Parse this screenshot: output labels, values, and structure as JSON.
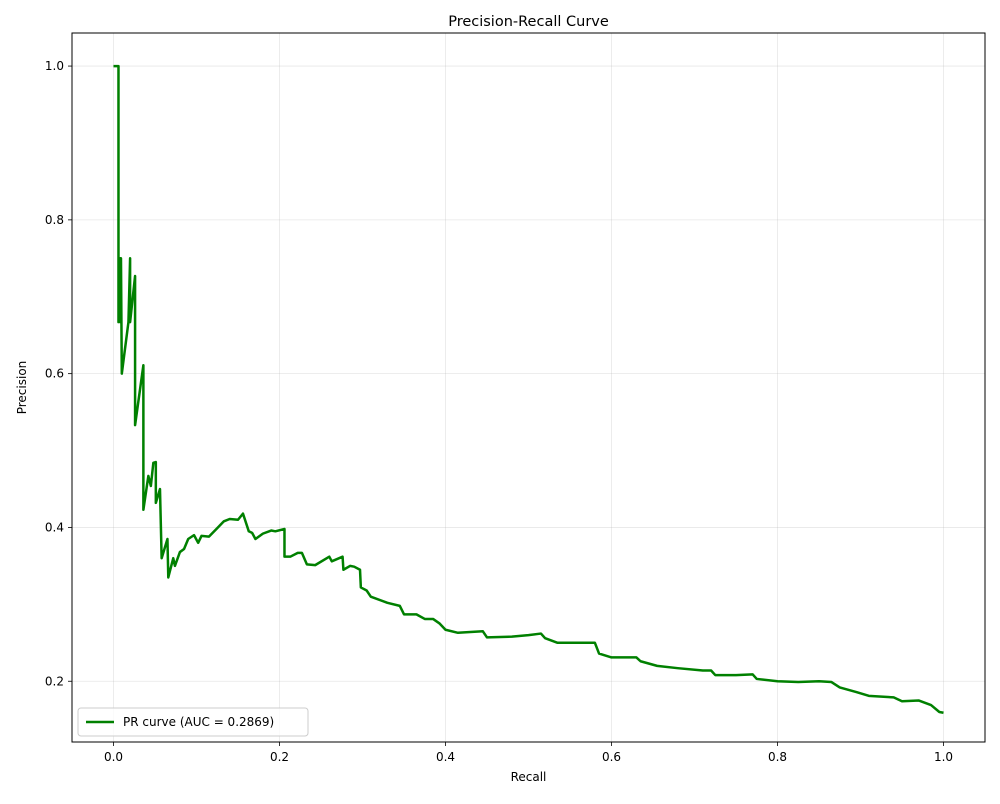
{
  "chart_data": {
    "type": "line",
    "title": "Precision-Recall Curve",
    "xlabel": "Recall",
    "ylabel": "Precision",
    "xlim": [
      -0.05,
      1.05
    ],
    "ylim": [
      0.121,
      1.043
    ],
    "xticks": [
      0.0,
      0.2,
      0.4,
      0.6,
      0.8,
      1.0
    ],
    "xtick_labels": [
      "0.0",
      "0.2",
      "0.4",
      "0.6",
      "0.8",
      "1.0"
    ],
    "yticks": [
      0.2,
      0.4,
      0.6,
      0.8,
      1.0
    ],
    "ytick_labels": [
      "0.2",
      "0.4",
      "0.6",
      "0.8",
      "1.0"
    ],
    "grid": true,
    "legend": {
      "location": "lower-left"
    },
    "series": [
      {
        "name": "PR curve (AUC = 0.2869)",
        "color": "#008000",
        "points": [
          [
            0.0,
            1.0
          ],
          [
            0.006,
            1.0
          ],
          [
            0.006,
            0.667
          ],
          [
            0.008,
            0.75
          ],
          [
            0.008,
            0.667
          ],
          [
            0.009,
            0.75
          ],
          [
            0.01,
            0.6
          ],
          [
            0.018,
            0.667
          ],
          [
            0.02,
            0.75
          ],
          [
            0.02,
            0.667
          ],
          [
            0.026,
            0.727
          ],
          [
            0.026,
            0.533
          ],
          [
            0.036,
            0.611
          ],
          [
            0.036,
            0.423
          ],
          [
            0.042,
            0.467
          ],
          [
            0.045,
            0.454
          ],
          [
            0.048,
            0.484
          ],
          [
            0.051,
            0.485
          ],
          [
            0.051,
            0.432
          ],
          [
            0.056,
            0.45
          ],
          [
            0.058,
            0.36
          ],
          [
            0.065,
            0.385
          ],
          [
            0.066,
            0.335
          ],
          [
            0.072,
            0.36
          ],
          [
            0.074,
            0.35
          ],
          [
            0.08,
            0.368
          ],
          [
            0.085,
            0.372
          ],
          [
            0.09,
            0.385
          ],
          [
            0.097,
            0.39
          ],
          [
            0.102,
            0.38
          ],
          [
            0.106,
            0.389
          ],
          [
            0.115,
            0.388
          ],
          [
            0.124,
            0.398
          ],
          [
            0.133,
            0.408
          ],
          [
            0.14,
            0.411
          ],
          [
            0.15,
            0.41
          ],
          [
            0.156,
            0.418
          ],
          [
            0.163,
            0.395
          ],
          [
            0.167,
            0.393
          ],
          [
            0.171,
            0.385
          ],
          [
            0.18,
            0.392
          ],
          [
            0.19,
            0.396
          ],
          [
            0.195,
            0.395
          ],
          [
            0.206,
            0.398
          ],
          [
            0.206,
            0.362
          ],
          [
            0.213,
            0.362
          ],
          [
            0.222,
            0.367
          ],
          [
            0.227,
            0.367
          ],
          [
            0.233,
            0.352
          ],
          [
            0.243,
            0.351
          ],
          [
            0.26,
            0.362
          ],
          [
            0.263,
            0.356
          ],
          [
            0.276,
            0.362
          ],
          [
            0.277,
            0.345
          ],
          [
            0.285,
            0.35
          ],
          [
            0.29,
            0.349
          ],
          [
            0.297,
            0.345
          ],
          [
            0.298,
            0.322
          ],
          [
            0.305,
            0.318
          ],
          [
            0.31,
            0.31
          ],
          [
            0.33,
            0.302
          ],
          [
            0.345,
            0.298
          ],
          [
            0.35,
            0.287
          ],
          [
            0.365,
            0.287
          ],
          [
            0.375,
            0.281
          ],
          [
            0.385,
            0.281
          ],
          [
            0.393,
            0.275
          ],
          [
            0.4,
            0.267
          ],
          [
            0.415,
            0.263
          ],
          [
            0.445,
            0.265
          ],
          [
            0.45,
            0.257
          ],
          [
            0.48,
            0.258
          ],
          [
            0.5,
            0.26
          ],
          [
            0.515,
            0.262
          ],
          [
            0.52,
            0.256
          ],
          [
            0.535,
            0.25
          ],
          [
            0.56,
            0.25
          ],
          [
            0.58,
            0.25
          ],
          [
            0.585,
            0.236
          ],
          [
            0.6,
            0.231
          ],
          [
            0.63,
            0.231
          ],
          [
            0.635,
            0.226
          ],
          [
            0.655,
            0.22
          ],
          [
            0.68,
            0.217
          ],
          [
            0.71,
            0.214
          ],
          [
            0.72,
            0.214
          ],
          [
            0.725,
            0.208
          ],
          [
            0.75,
            0.208
          ],
          [
            0.77,
            0.209
          ],
          [
            0.775,
            0.203
          ],
          [
            0.8,
            0.2
          ],
          [
            0.825,
            0.199
          ],
          [
            0.85,
            0.2
          ],
          [
            0.865,
            0.199
          ],
          [
            0.875,
            0.192
          ],
          [
            0.895,
            0.186
          ],
          [
            0.91,
            0.181
          ],
          [
            0.94,
            0.179
          ],
          [
            0.95,
            0.174
          ],
          [
            0.97,
            0.175
          ],
          [
            0.985,
            0.169
          ],
          [
            0.995,
            0.16
          ],
          [
            1.0,
            0.159
          ]
        ]
      }
    ]
  }
}
